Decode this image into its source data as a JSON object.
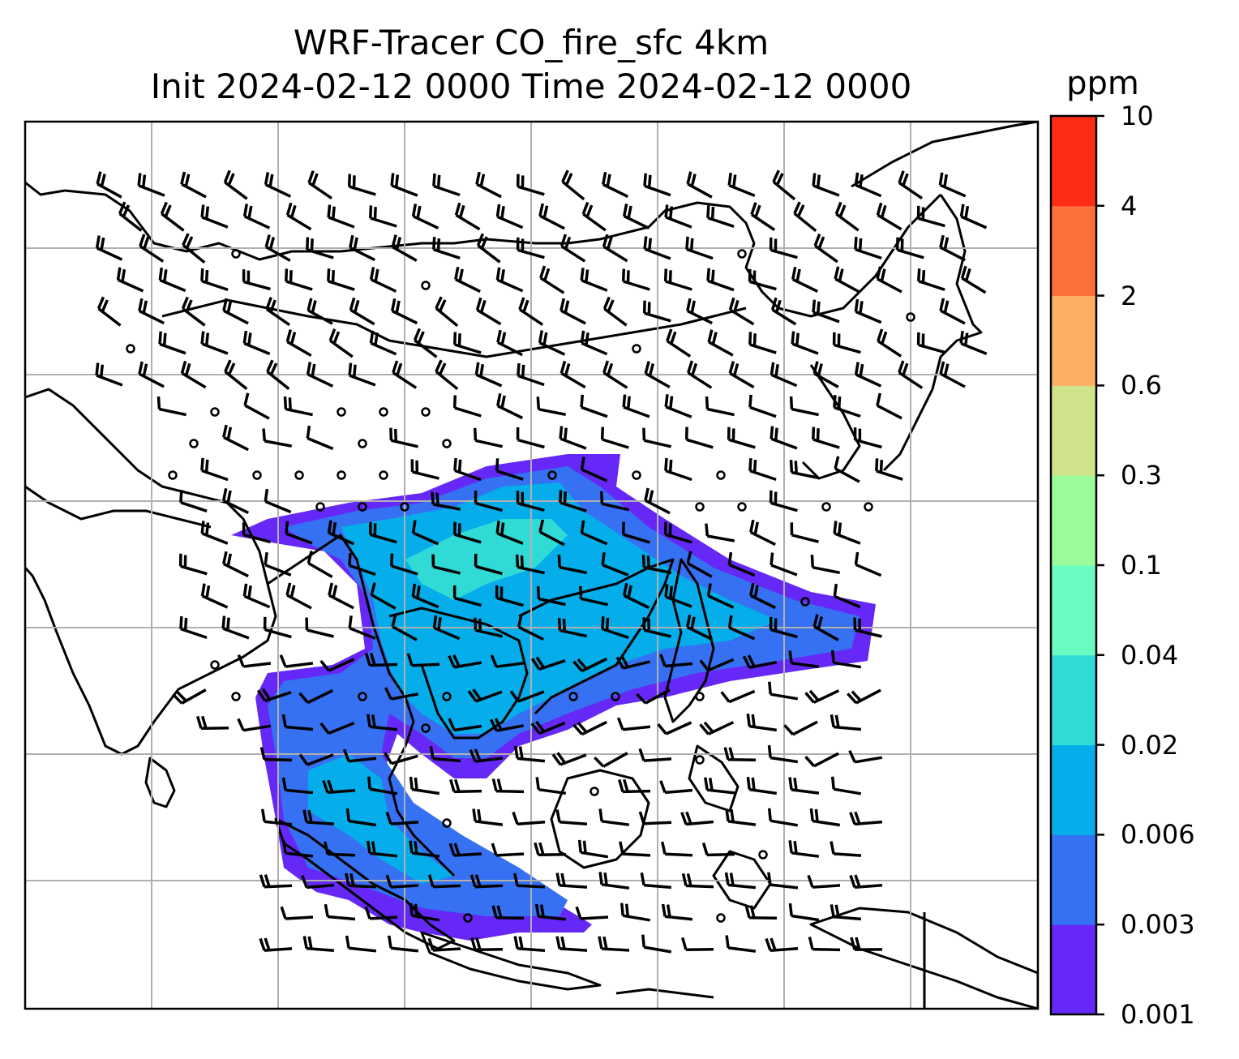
{
  "title": {
    "line1": "WRF-Tracer CO_fire_sfc 4km",
    "line2": "Init 2024-02-12 0000 Time 2024-02-12 0000"
  },
  "colorbar": {
    "unit": "ppm",
    "levels": [
      "0.001",
      "0.003",
      "0.006",
      "0.02",
      "0.04",
      "0.1",
      "0.3",
      "0.6",
      "2",
      "4",
      "10"
    ],
    "colors": [
      "#6528f7",
      "#3571f2",
      "#05aeea",
      "#30dbd6",
      "#69fbc0",
      "#9bfa9a",
      "#cfe38b",
      "#fdb063",
      "#fb703b",
      "#fd2d15"
    ]
  },
  "map": {
    "field": "CO_fire_sfc",
    "overlay": "wind barbs",
    "gridlines": true,
    "colors": {
      "plume_outer": "#6528f7",
      "plume_mid": "#3571f2",
      "plume_inner": "#05aeea",
      "plume_core": "#30dbd6",
      "coastline": "#000000",
      "gridline": "#b0b0b0"
    }
  }
}
